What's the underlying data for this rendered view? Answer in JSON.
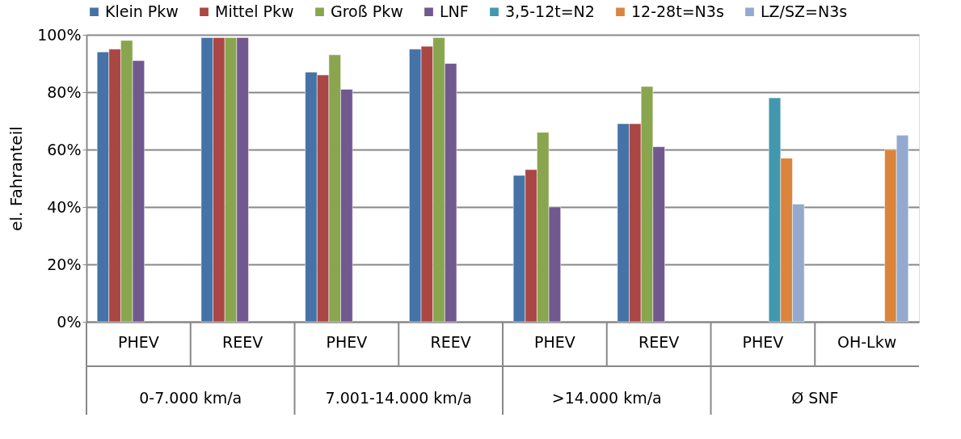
{
  "chart_data": {
    "type": "bar",
    "ylabel": "el. Fahranteil",
    "categories": [
      "PHEV",
      "REEV",
      "PHEV",
      "REEV",
      "PHEV",
      "REEV",
      "PHEV",
      "OH-Lkw"
    ],
    "annotations": [
      "0-7.000 km/a",
      "7.001-14.000 km/a",
      ">14.000 km/a",
      "Ø SNF"
    ],
    "series": [
      {
        "name": "Klein Pkw",
        "color": "#4572a7",
        "values": [
          94,
          99,
          87,
          95,
          51,
          69,
          null,
          null
        ]
      },
      {
        "name": "Mittel Pkw",
        "color": "#aa4643",
        "values": [
          95,
          99,
          86,
          96,
          53,
          69,
          null,
          null
        ]
      },
      {
        "name": "Groß Pkw",
        "color": "#89a54e",
        "values": [
          98,
          99,
          93,
          99,
          66,
          82,
          null,
          null
        ]
      },
      {
        "name": "LNF",
        "color": "#71588f",
        "values": [
          91,
          99,
          81,
          90,
          40,
          61,
          null,
          null
        ]
      },
      {
        "name": "3,5-12t=N2",
        "color": "#4198af",
        "values": [
          null,
          null,
          null,
          null,
          null,
          null,
          78,
          null
        ]
      },
      {
        "name": "12-28t=N3s",
        "color": "#db843d",
        "values": [
          null,
          null,
          null,
          null,
          null,
          null,
          57,
          60
        ]
      },
      {
        "name": "LZ/SZ=N3s",
        "color": "#93a9cf",
        "values": [
          null,
          null,
          null,
          null,
          null,
          null,
          41,
          65
        ]
      }
    ],
    "ylim": [
      0,
      100
    ],
    "yticks": [
      {
        "value": 0,
        "label": "0%"
      },
      {
        "value": 20,
        "label": "20%"
      },
      {
        "value": 40,
        "label": "40%"
      },
      {
        "value": 60,
        "label": "60%"
      },
      {
        "value": 80,
        "label": "80%"
      },
      {
        "value": 100,
        "label": "100%"
      }
    ],
    "grid": "y",
    "legend": "top"
  }
}
